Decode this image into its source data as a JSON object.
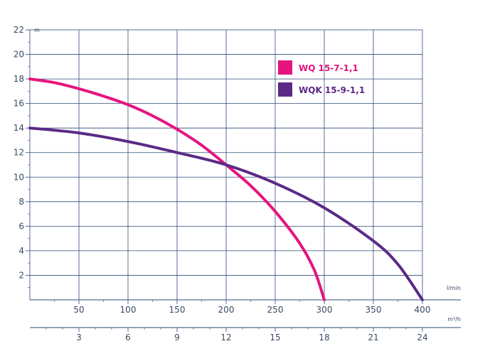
{
  "chart_data": {
    "type": "line",
    "y_unit": "m",
    "x_unit": "l/min",
    "x2_unit": "m³/h",
    "ylim": [
      0,
      22
    ],
    "xlim": [
      0,
      400
    ],
    "x2lim": [
      0,
      24
    ],
    "yticks": [
      2,
      4,
      6,
      8,
      10,
      12,
      14,
      16,
      18,
      20,
      22
    ],
    "xticks": [
      50,
      100,
      150,
      200,
      250,
      300,
      350,
      400
    ],
    "x2ticks": [
      3,
      6,
      9,
      12,
      15,
      18,
      21,
      24
    ],
    "grid": true,
    "legend_position": "top-right",
    "series": [
      {
        "name": "WQ 15-7-1,1",
        "color": "#e5147f",
        "x": [
          0,
          25,
          50,
          75,
          100,
          125,
          150,
          175,
          200,
          225,
          250,
          275,
          290,
          300
        ],
        "y": [
          18,
          17.7,
          17.2,
          16.6,
          15.9,
          15.0,
          13.9,
          12.6,
          11.0,
          9.3,
          7.2,
          4.6,
          2.4,
          0
        ]
      },
      {
        "name": "WQK 15-9-1,1",
        "color": "#5b2a86",
        "x": [
          0,
          50,
          100,
          150,
          200,
          250,
          300,
          350,
          375,
          400
        ],
        "y": [
          14,
          13.6,
          12.9,
          12.0,
          11.0,
          9.5,
          7.5,
          4.8,
          2.9,
          0
        ]
      }
    ]
  }
}
